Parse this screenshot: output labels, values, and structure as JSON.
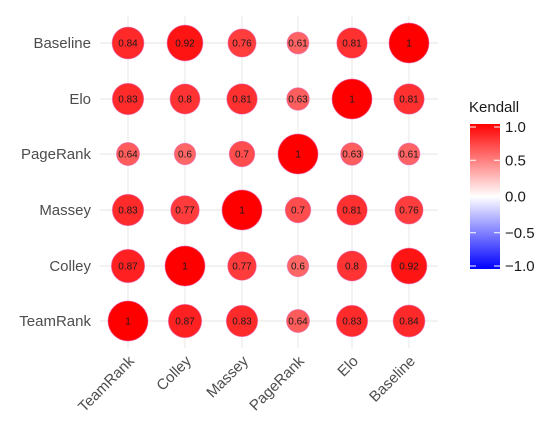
{
  "chart_data": {
    "type": "correlation-bubble-matrix",
    "x_categories": [
      "TeamRank",
      "Colley",
      "Massey",
      "PageRank",
      "Elo",
      "Baseline"
    ],
    "y_categories": [
      "TeamRank",
      "Colley",
      "Massey",
      "PageRank",
      "Elo",
      "Baseline"
    ],
    "values": [
      [
        1,
        0.87,
        0.83,
        0.64,
        0.83,
        0.84
      ],
      [
        0.87,
        1,
        0.77,
        0.6,
        0.8,
        0.92
      ],
      [
        0.83,
        0.77,
        1,
        0.7,
        0.81,
        0.76
      ],
      [
        0.64,
        0.6,
        0.7,
        1,
        0.63,
        0.61
      ],
      [
        0.83,
        0.8,
        0.81,
        0.63,
        1,
        0.81
      ],
      [
        0.84,
        0.92,
        0.76,
        0.61,
        0.81,
        1
      ]
    ],
    "labels": [
      [
        "1",
        "0.87",
        "0.83",
        "0.64",
        "0.83",
        "0.84"
      ],
      [
        "0.87",
        "1",
        "0.77",
        "0.6",
        "0.8",
        "0.92"
      ],
      [
        "0.83",
        "0.77",
        "1",
        "0.7",
        "0.81",
        "0.76"
      ],
      [
        "0.64",
        "0.6",
        "0.7",
        "1",
        "0.63",
        "0.61"
      ],
      [
        "0.83",
        "0.8",
        "0.81",
        "0.63",
        "1",
        "0.81"
      ],
      [
        "0.84",
        "0.92",
        "0.76",
        "0.61",
        "0.81",
        "1"
      ]
    ],
    "legend": {
      "title": "Kendall",
      "ticks": [
        "1.0",
        "0.5",
        "0.0",
        "−0.5",
        "−1.0"
      ],
      "tick_values": [
        1.0,
        0.5,
        0.0,
        -0.5,
        -1.0
      ],
      "range": [
        -1,
        1
      ]
    },
    "colors": {
      "low": "#0000ff",
      "mid": "#ffffff",
      "high": "#ff0000",
      "circle_outline": "#e04ab0",
      "grid": "#ebebeb"
    },
    "grid": true,
    "legend_position": "right",
    "size_encodes": "value"
  }
}
